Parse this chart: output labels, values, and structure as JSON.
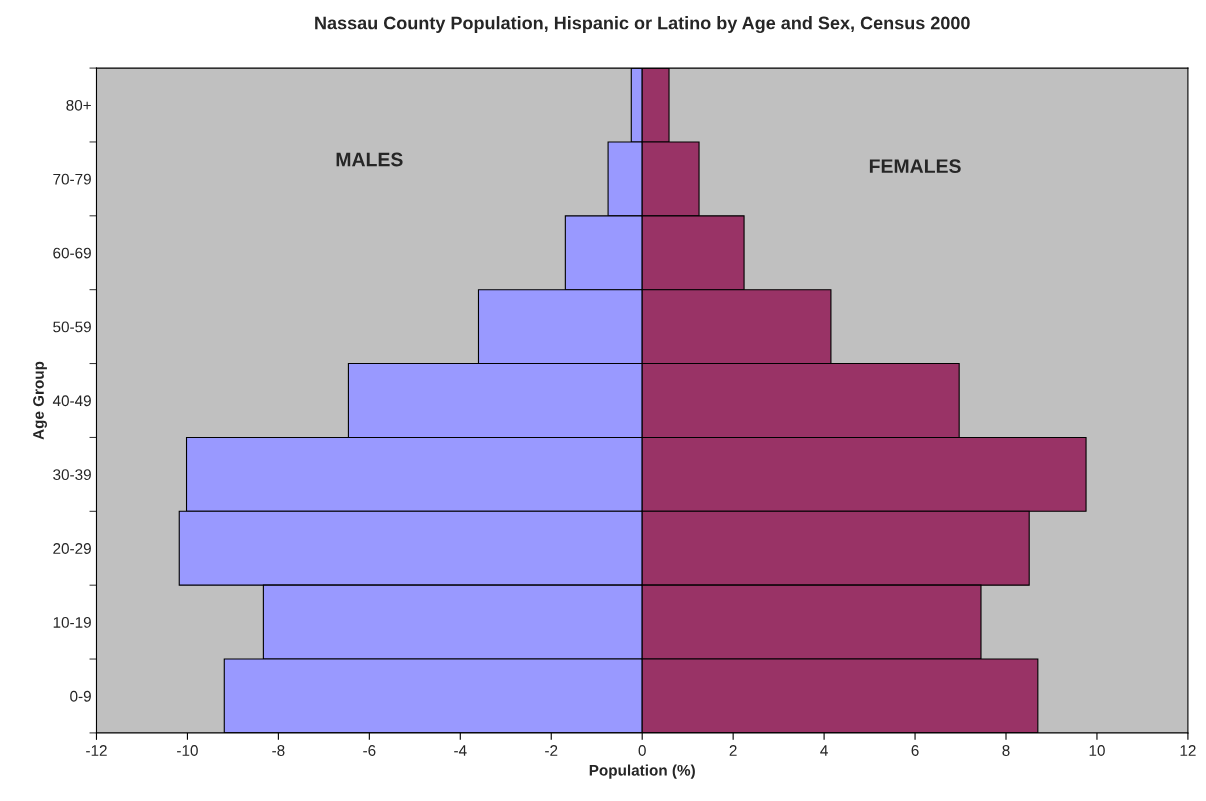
{
  "chart_data": {
    "type": "bar",
    "orientation": "horizontal",
    "stacked": true,
    "title": "Nassau County Population, Hispanic or Latino by Age and Sex, Census 2000",
    "xlabel": "Population (%)",
    "ylabel": "Age Group",
    "categories": [
      "80+",
      "70-79",
      "60-69",
      "50-59",
      "40-49",
      "30-39",
      "20-29",
      "10-19",
      "0-9"
    ],
    "series": [
      {
        "color": "#9999ff",
        "values": [
          -0.24,
          -0.75,
          -1.69,
          -3.6,
          -6.46,
          -10.02,
          -10.18,
          -8.33,
          -9.19
        ]
      },
      {
        "color": "#993366",
        "values": [
          0.59,
          1.25,
          2.24,
          4.15,
          6.97,
          9.76,
          8.51,
          7.45,
          8.7
        ]
      }
    ],
    "annotations": [
      "MALES",
      "FEMALES"
    ],
    "xlim": [
      -12,
      12
    ],
    "xticks": [
      -12,
      -10,
      -8,
      -6,
      -4,
      -2,
      0,
      2,
      4,
      6,
      8,
      10,
      12
    ],
    "grid": false,
    "legend": false
  }
}
